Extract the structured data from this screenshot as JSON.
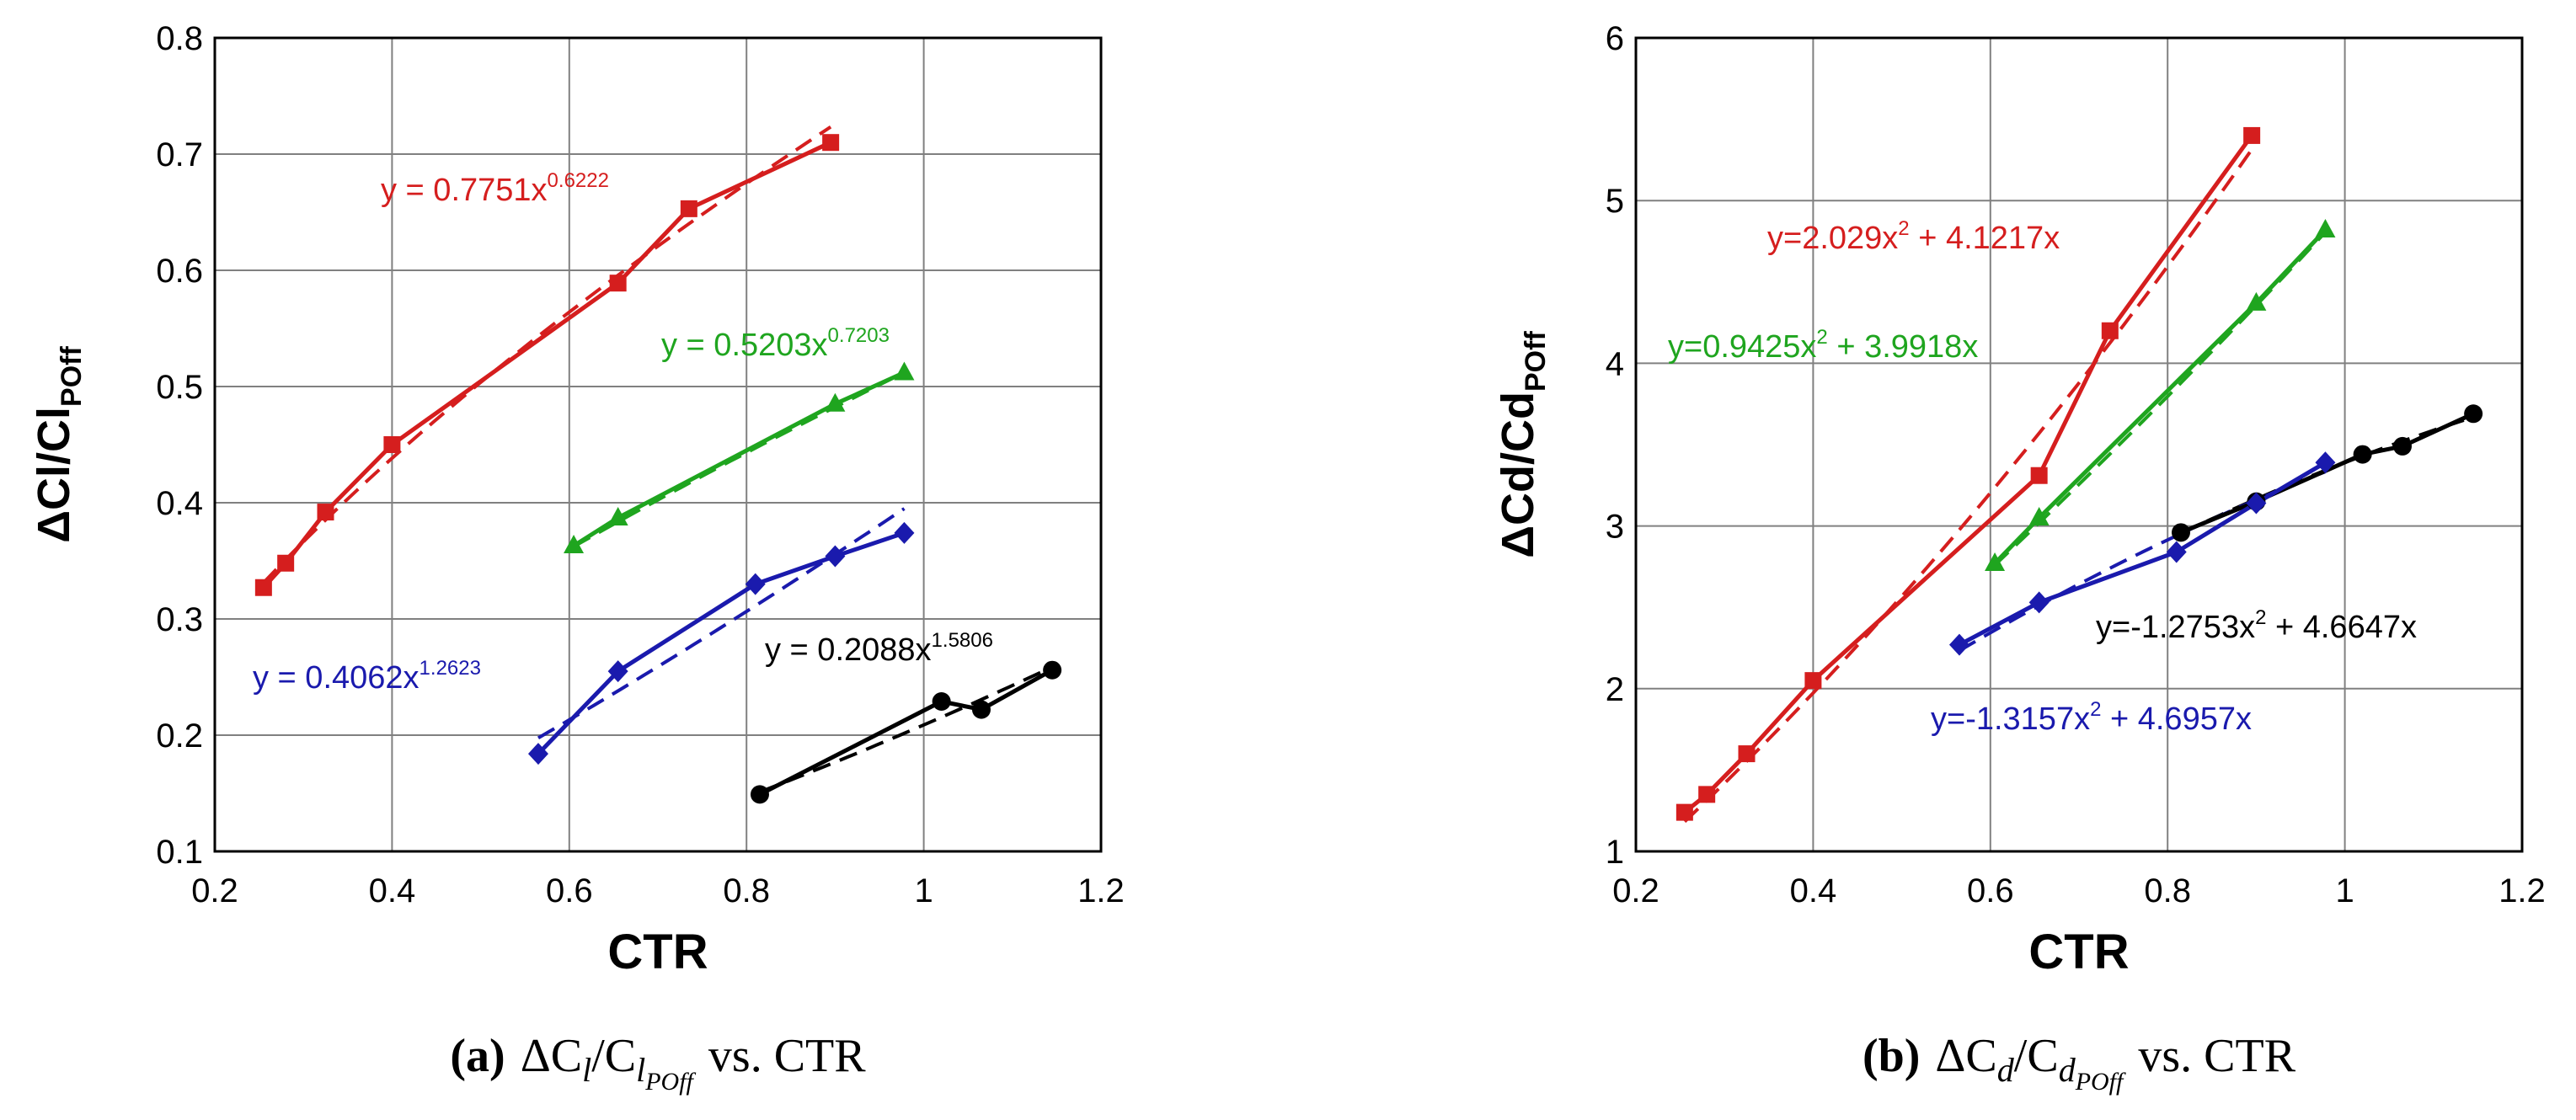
{
  "colors": {
    "red": "#d51e1e",
    "green": "#1fa51f",
    "blue": "#1a1aad",
    "black": "#000000",
    "grid": "#808080"
  },
  "chart_data": [
    {
      "type": "line",
      "panel": "a",
      "xlabel": "CTR",
      "ylabel_main": "ΔCl/Cl",
      "ylabel_sub": "POff",
      "xlim": [
        0.2,
        1.2
      ],
      "ylim": [
        0.1,
        0.8
      ],
      "xticks": [
        0.2,
        0.4,
        0.6,
        0.8,
        1,
        1.2
      ],
      "xtick_labels": [
        "0.2",
        "0.4",
        "0.6",
        "0.8",
        "1",
        "1.2"
      ],
      "yticks": [
        0.1,
        0.2,
        0.3,
        0.4,
        0.5,
        0.6,
        0.7,
        0.8
      ],
      "ytick_labels": [
        "0.1",
        "0.2",
        "0.3",
        "0.4",
        "0.5",
        "0.6",
        "0.7",
        "0.8"
      ],
      "grid": true,
      "caption": {
        "letter": "(a)",
        "main": "ΔC",
        "sub1": "l",
        "mid": "/C",
        "sub2": "l",
        "subsub": "POff",
        "tail": "vs. CTR"
      },
      "series": [
        {
          "name": "red",
          "color": "red",
          "marker": "square",
          "x": [
            0.255,
            0.28,
            0.325,
            0.4,
            0.655,
            0.735,
            0.895
          ],
          "y": [
            0.327,
            0.348,
            0.392,
            0.45,
            0.589,
            0.653,
            0.71
          ],
          "fit": {
            "a": 0.7751,
            "b": 0.6222,
            "kind": "power",
            "x0": 0.255,
            "x1": 0.895
          },
          "label_base": "y = 0.7751x",
          "label_exp": "0.6222"
        },
        {
          "name": "green",
          "color": "green",
          "marker": "triangle",
          "x": [
            0.605,
            0.655,
            0.9,
            0.978
          ],
          "y": [
            0.363,
            0.387,
            0.485,
            0.512
          ],
          "fit": {
            "a": 0.5203,
            "b": 0.7203,
            "kind": "power",
            "x0": 0.605,
            "x1": 0.978
          },
          "label_base": "y = 0.5203x",
          "label_exp": "0.7203"
        },
        {
          "name": "blue",
          "color": "blue",
          "marker": "diamond",
          "x": [
            0.565,
            0.655,
            0.81,
            0.9,
            0.978
          ],
          "y": [
            0.184,
            0.255,
            0.33,
            0.354,
            0.374
          ],
          "fit": {
            "a": 0.4062,
            "b": 1.2623,
            "kind": "power",
            "x0": 0.565,
            "x1": 0.978
          },
          "label_base": "y = 0.4062x",
          "label_exp": "1.2623"
        },
        {
          "name": "black",
          "color": "black",
          "marker": "circle",
          "x": [
            0.815,
            1.02,
            1.065,
            1.145
          ],
          "y": [
            0.149,
            0.229,
            0.222,
            0.256
          ],
          "fit": {
            "a": 0.2088,
            "b": 1.5806,
            "kind": "power",
            "x0": 0.815,
            "x1": 1.145
          },
          "label_base": "y = 0.2088x",
          "label_exp": "1.5806"
        }
      ]
    },
    {
      "type": "line",
      "panel": "b",
      "xlabel": "CTR",
      "ylabel_main": "ΔCd/Cd",
      "ylabel_sub": "POff",
      "xlim": [
        0.2,
        1.2
      ],
      "ylim": [
        1,
        6
      ],
      "xticks": [
        0.2,
        0.4,
        0.6,
        0.8,
        1,
        1.2
      ],
      "xtick_labels": [
        "0.2",
        "0.4",
        "0.6",
        "0.8",
        "1",
        "1.2"
      ],
      "yticks": [
        1,
        2,
        3,
        4,
        5,
        6
      ],
      "ytick_labels": [
        "1",
        "2",
        "3",
        "4",
        "5",
        "6"
      ],
      "grid": true,
      "caption": {
        "letter": "(b)",
        "main": "ΔC",
        "sub1": "d",
        "mid": "/C",
        "sub2": "d",
        "subsub": "POff",
        "tail": "vs. CTR"
      },
      "series": [
        {
          "name": "red",
          "color": "red",
          "marker": "square",
          "x": [
            0.255,
            0.28,
            0.325,
            0.4,
            0.655,
            0.735,
            0.895
          ],
          "y": [
            1.24,
            1.35,
            1.6,
            2.05,
            3.31,
            4.2,
            5.4
          ],
          "fit": {
            "a": 2.029,
            "b": 4.1217,
            "kind": "quadratic",
            "x0": 0.255,
            "x1": 0.895
          },
          "label_base": "y=2.029x",
          "label_exp": "2",
          "label_tail": " + 4.1217x"
        },
        {
          "name": "green",
          "color": "green",
          "marker": "triangle",
          "x": [
            0.605,
            0.655,
            0.9,
            0.978
          ],
          "y": [
            2.77,
            3.05,
            4.37,
            4.82
          ],
          "fit": {
            "a": 0.9425,
            "b": 3.9918,
            "kind": "quadratic",
            "x0": 0.605,
            "x1": 0.978
          },
          "label_base": "y=0.9425x",
          "label_exp": "2",
          "label_tail": " + 3.9918x"
        },
        {
          "name": "black",
          "color": "black",
          "marker": "circle",
          "x": [
            0.815,
            0.9,
            1.02,
            1.065,
            1.145
          ],
          "y": [
            2.96,
            3.15,
            3.44,
            3.49,
            3.69
          ],
          "fit": {
            "a": -1.2753,
            "b": 4.6647,
            "kind": "quadratic",
            "x0": 0.815,
            "x1": 1.145
          },
          "label_base": "y=-1.2753x",
          "label_exp": "2",
          "label_tail": " + 4.6647x"
        },
        {
          "name": "blue",
          "color": "blue",
          "marker": "diamond",
          "x": [
            0.565,
            0.655,
            0.81,
            0.9,
            0.978
          ],
          "y": [
            2.27,
            2.53,
            2.84,
            3.14,
            3.39
          ],
          "fit": {
            "a": -1.3157,
            "b": 4.6957,
            "kind": "quadratic",
            "x0": 0.565,
            "x1": 0.978
          },
          "label_base": "y=-1.3157x",
          "label_exp": "2",
          "label_tail": " + 4.6957x"
        }
      ]
    }
  ]
}
